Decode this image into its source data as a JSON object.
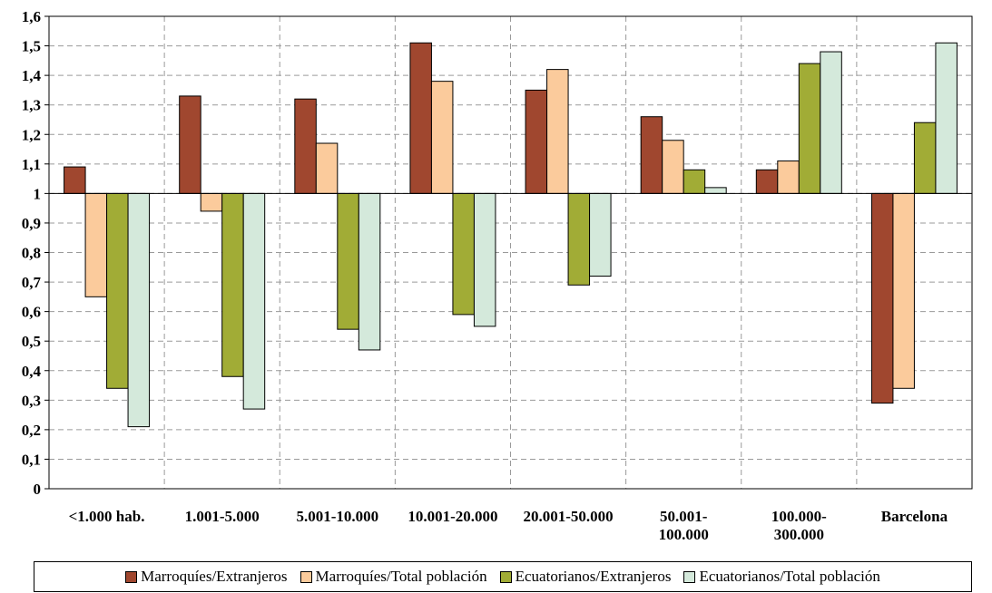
{
  "chart_data": {
    "type": "bar",
    "baseline": 1,
    "ylim": [
      0,
      1.6
    ],
    "ytick_labels": [
      "0",
      "0,1",
      "0,2",
      "0,3",
      "0,4",
      "0,5",
      "0,6",
      "0,7",
      "0,8",
      "0,9",
      "1",
      "1,1",
      "1,2",
      "1,3",
      "1,4",
      "1,5",
      "1,6"
    ],
    "categories": [
      [
        "<1.000 hab."
      ],
      [
        "1.001-5.000"
      ],
      [
        "5.001-10.000"
      ],
      [
        "10.001-20.000"
      ],
      [
        "20.001-50.000"
      ],
      [
        "50.001-",
        "100.000"
      ],
      [
        "100.000-",
        "300.000"
      ],
      [
        "Barcelona"
      ]
    ],
    "series": [
      {
        "name": "Marroquíes/Extranjeros",
        "color": "#A0472F",
        "values": [
          1.09,
          1.33,
          1.32,
          1.51,
          1.35,
          1.26,
          1.08,
          0.29
        ]
      },
      {
        "name": "Marroquíes/Total población",
        "color": "#FBCB9C",
        "values": [
          0.65,
          0.94,
          1.17,
          1.38,
          1.42,
          1.18,
          1.11,
          0.34
        ]
      },
      {
        "name": "Ecuatorianos/Extranjeros",
        "color": "#A1AC36",
        "values": [
          0.34,
          0.38,
          0.54,
          0.59,
          0.69,
          1.08,
          1.44,
          1.24
        ]
      },
      {
        "name": "Ecuatorianos/Total población",
        "color": "#D4E9DB",
        "values": [
          0.21,
          0.27,
          0.47,
          0.55,
          0.72,
          1.02,
          1.48,
          1.51
        ]
      }
    ],
    "grid": true,
    "legend": "bottom"
  }
}
